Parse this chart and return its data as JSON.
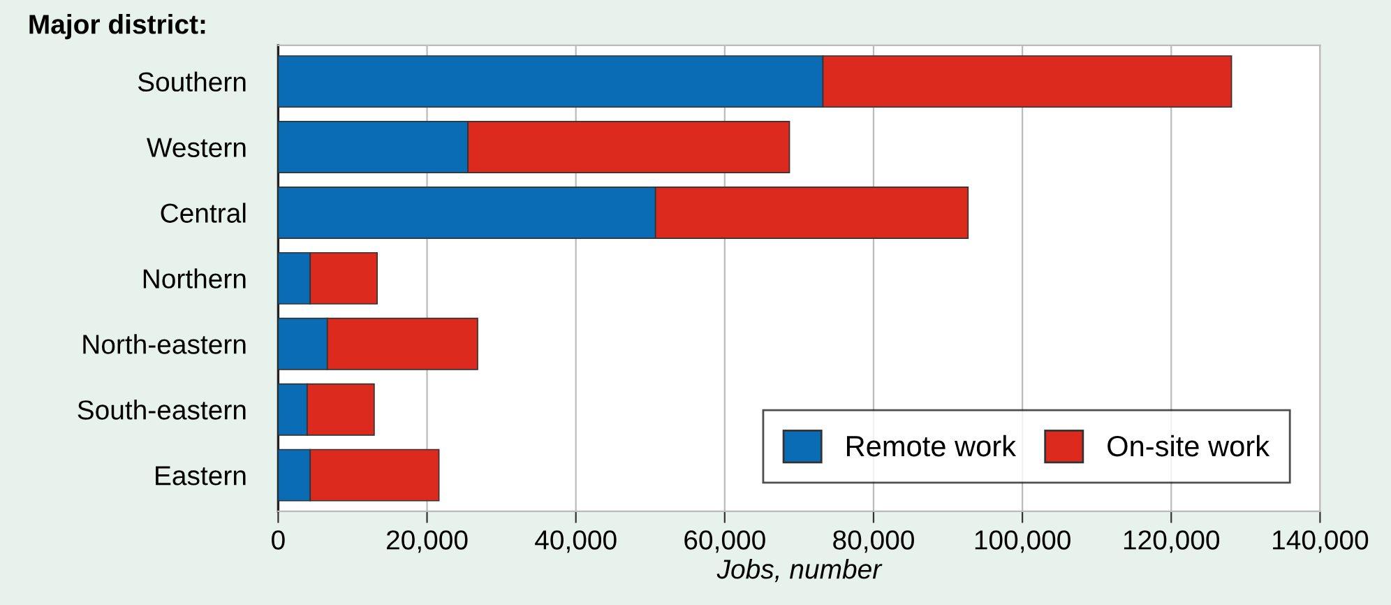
{
  "chart_data": {
    "type": "bar",
    "orientation": "horizontal",
    "stacked": true,
    "ylabel": "Major district:",
    "xlabel": "Jobs, number",
    "categories": [
      "Southern",
      "Western",
      "Central",
      "Northern",
      "North-eastern",
      "South-eastern",
      "Eastern"
    ],
    "series": [
      {
        "name": "Remote work",
        "color": "#0a6cb4",
        "values": [
          73200,
          25500,
          50700,
          4300,
          6600,
          3900,
          4300
        ]
      },
      {
        "name": "On-site work",
        "color": "#dc2a1e",
        "values": [
          54900,
          43200,
          42000,
          9000,
          20200,
          9000,
          17300
        ]
      }
    ],
    "xlim": [
      0,
      140000
    ],
    "xticks": [
      {
        "value": 0,
        "label": "0"
      },
      {
        "value": 20000,
        "label": "20,000"
      },
      {
        "value": 40000,
        "label": "40,000"
      },
      {
        "value": 60000,
        "label": "60,000"
      },
      {
        "value": 80000,
        "label": "80,000"
      },
      {
        "value": 100000,
        "label": "100,000"
      },
      {
        "value": 120000,
        "label": "120,000"
      },
      {
        "value": 140000,
        "label": "140,000"
      }
    ],
    "grid": "x",
    "legend": "bottom right"
  }
}
